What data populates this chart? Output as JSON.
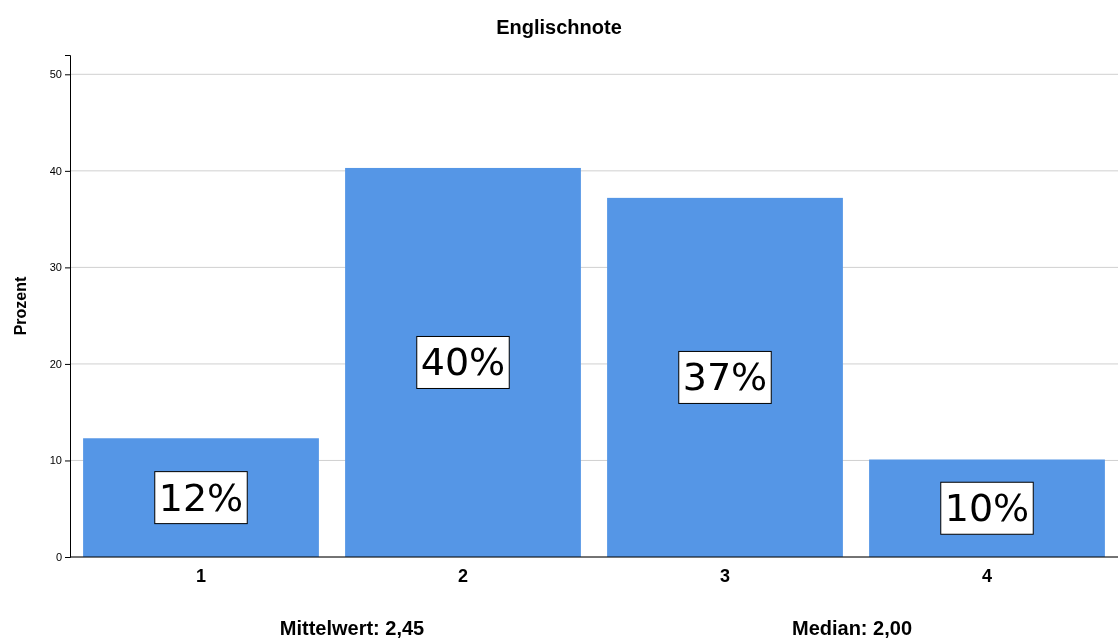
{
  "chart_data": {
    "type": "bar",
    "title": "Englischnote",
    "ylabel": "Prozent",
    "categories": [
      "1",
      "2",
      "3",
      "4"
    ],
    "values": [
      12.3,
      40.3,
      37.2,
      10.1
    ],
    "value_labels": [
      "12%",
      "40%",
      "37%",
      "10%"
    ],
    "color": "#5596e6",
    "ylim": [
      0,
      52
    ],
    "yticks": [
      0,
      10,
      20,
      30,
      40,
      50
    ],
    "grid": "y",
    "annotations": [
      "Mittelwert: 2,45",
      "Median: 2,00"
    ]
  }
}
